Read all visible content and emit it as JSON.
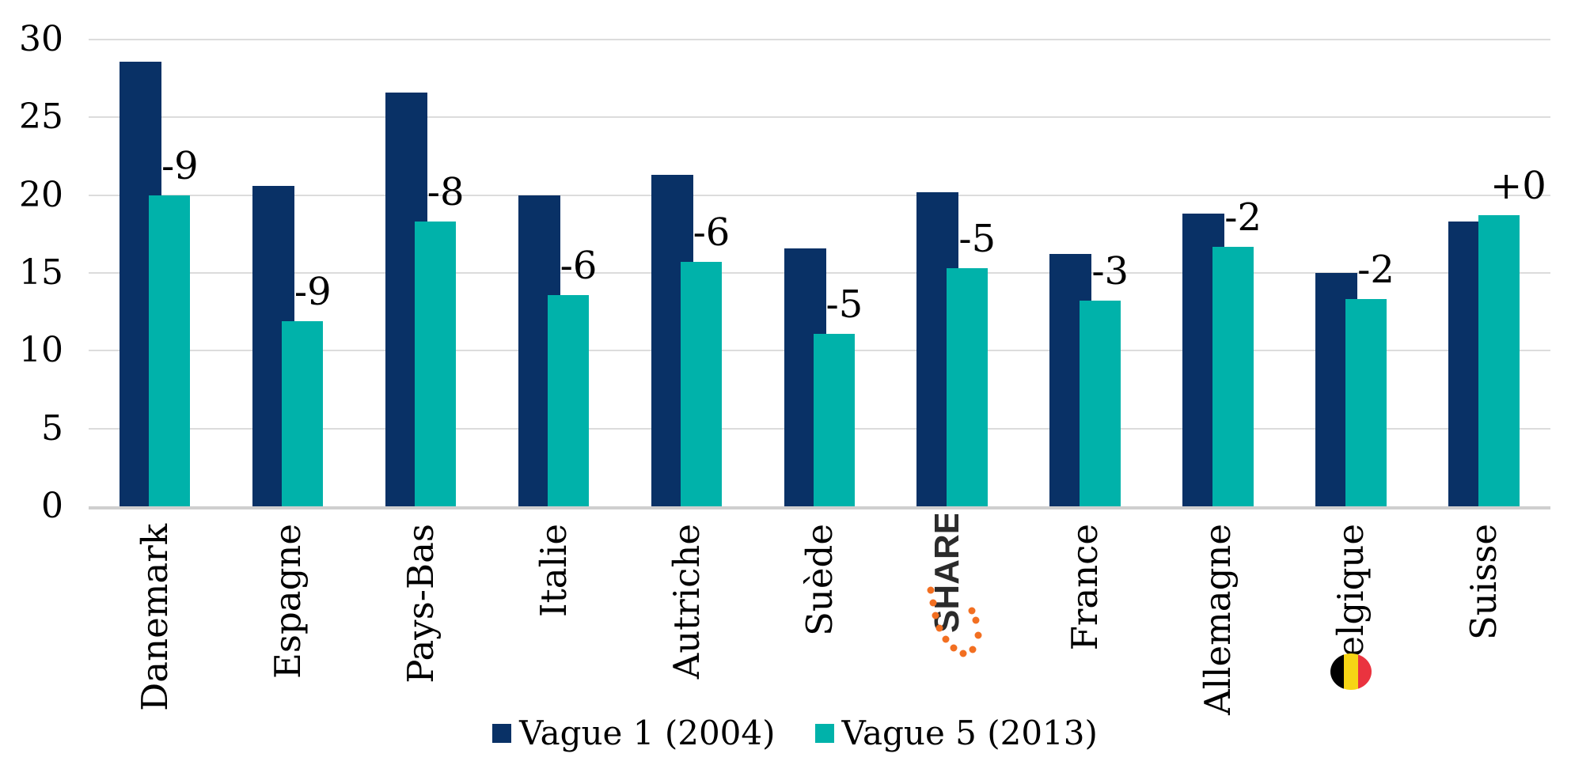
{
  "chart_data": {
    "type": "bar",
    "title": "",
    "categories": [
      "Danemark",
      "Espagne",
      "Pays-Bas",
      "Italie",
      "Autriche",
      "Suède",
      "SHARE",
      "France",
      "Allemagne",
      "Belgique",
      "Suisse"
    ],
    "series": [
      {
        "name": "Vague 1 (2004)",
        "color": "#093166",
        "values": [
          28.6,
          20.6,
          26.6,
          20.0,
          21.3,
          16.6,
          20.2,
          16.2,
          18.8,
          15.0,
          18.3
        ]
      },
      {
        "name": "Vague 5 (2013)",
        "color": "#00b2aa",
        "values": [
          20.0,
          11.9,
          18.3,
          13.6,
          15.7,
          11.1,
          15.3,
          13.2,
          16.7,
          13.3,
          18.7
        ]
      }
    ],
    "bar_labels": [
      "-9",
      "-9",
      "-8",
      "-6",
      "-6",
      "-5",
      "-5",
      "-3",
      "-2",
      "-2",
      "+0"
    ],
    "ylim": [
      0,
      30
    ],
    "yticks": [
      0,
      5,
      10,
      15,
      20,
      25,
      30
    ],
    "grid": "horizontal",
    "legend_position": "bottom",
    "legend": [
      "Vague 1 (2004)",
      "Vague 5 (2013)"
    ],
    "share_logo": {
      "index": 6,
      "text": "SHARE",
      "text_color": "#2b2b2b",
      "accent_color": "#f26f21"
    },
    "belgium_flag": {
      "index": 9,
      "colors": [
        "#000000",
        "#f6d515",
        "#ea333f"
      ]
    }
  }
}
